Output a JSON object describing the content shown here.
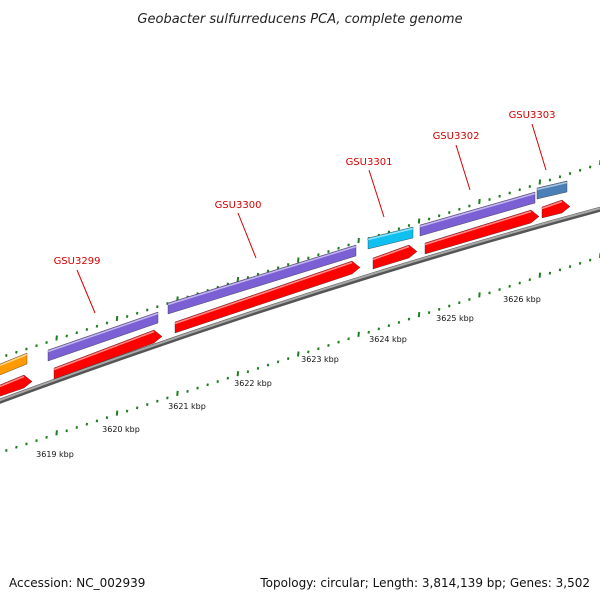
{
  "title": "Geobacter sulfurreducens PCA, complete genome",
  "accession_text": "Accession: NC_002939",
  "summary_text": "Topology: circular; Length: 3,814,139 bp; Genes: 3,502",
  "colors": {
    "gene_label": "#d40000",
    "backbone": "#808080",
    "tick": "#1e7d1e",
    "cds_red": "#ff0000",
    "gene_purple": "#7b5fd4",
    "gene_cyan": "#0fc0f0",
    "gene_steelblue": "#4a7fb8",
    "gene_orange": "#ff9a00"
  },
  "kbp_labels": [
    "3619 kbp",
    "3620 kbp",
    "3621 kbp",
    "3622 kbp",
    "3623 kbp",
    "3624 kbp",
    "3625 kbp",
    "3626 kbp"
  ],
  "genes": [
    {
      "label": "",
      "color": "orange"
    },
    {
      "label": "GSU3299",
      "color": "purple"
    },
    {
      "label": "GSU3300",
      "color": "purple"
    },
    {
      "label": "GSU3301",
      "color": "cyan"
    },
    {
      "label": "GSU3302",
      "color": "purple"
    },
    {
      "label": "GSU3303",
      "color": "steelblue"
    }
  ]
}
